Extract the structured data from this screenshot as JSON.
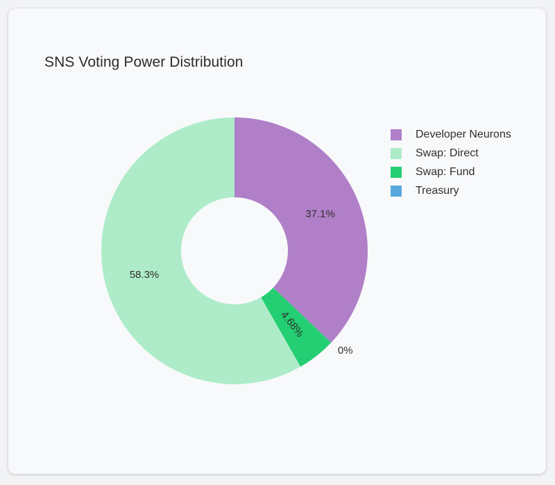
{
  "chart_data": {
    "type": "pie",
    "title": "SNS Voting Power Distribution",
    "donut": true,
    "legend_position": "right",
    "slices": [
      {
        "label": "Developer Neurons",
        "value": 37.1,
        "display": "37.1%",
        "color": "#b07fc8"
      },
      {
        "label": "Treasury",
        "value": 0,
        "display": "0%",
        "color": "#5aa8dd"
      },
      {
        "label": "Swap: Fund",
        "value": 4.68,
        "display": "4.68%",
        "color": "#24ce72"
      },
      {
        "label": "Swap: Direct",
        "value": 58.3,
        "display": "58.3%",
        "color": "#aeecc9"
      }
    ],
    "legend": [
      {
        "label": "Developer Neurons",
        "color": "#b07fc8"
      },
      {
        "label": "Swap: Direct",
        "color": "#aeecc9"
      },
      {
        "label": "Swap: Fund",
        "color": "#24ce72"
      },
      {
        "label": "Treasury",
        "color": "#5aa8dd"
      }
    ]
  }
}
